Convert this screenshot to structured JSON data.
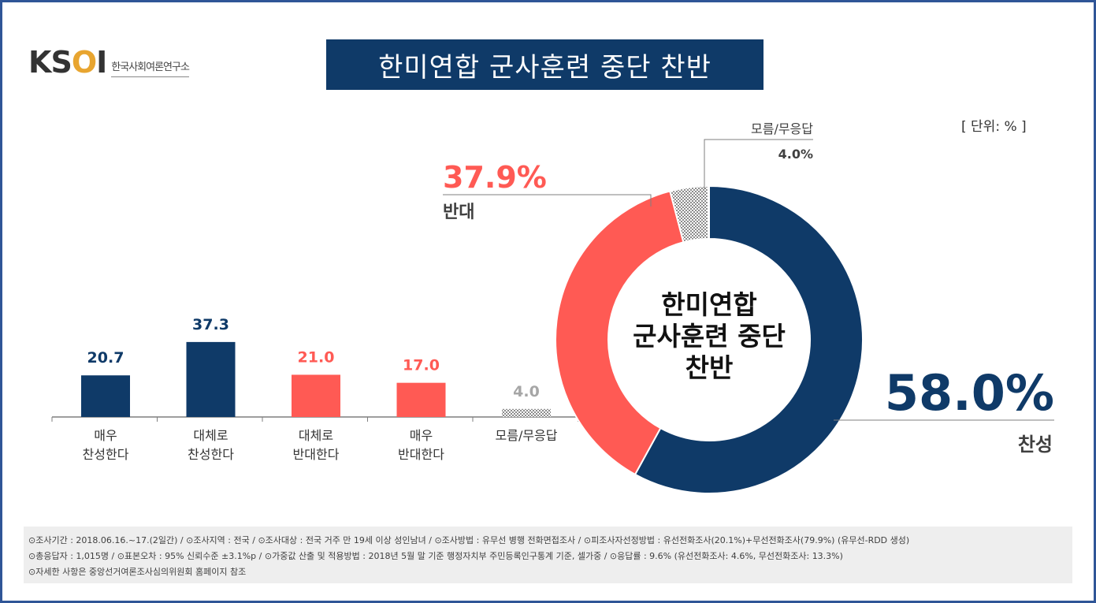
{
  "logo": {
    "mark_pre": "KS",
    "mark_o": "O",
    "mark_post": "I",
    "subtitle": "한국사회여론연구소"
  },
  "title": "한미연합 군사훈련 중단 찬반",
  "unit_label": "[ 단위: % ]",
  "colors": {
    "navy": "#0f3a68",
    "red": "#ff5a54",
    "gray": "#a6a6a6",
    "axis": "#7f7f7f"
  },
  "chart_data": [
    {
      "type": "bar",
      "categories": [
        [
          "매우",
          "찬성한다"
        ],
        [
          "대체로",
          "찬성한다"
        ],
        [
          "대체로",
          "반대한다"
        ],
        [
          "매우",
          "반대한다"
        ],
        [
          "모름/무응답"
        ]
      ],
      "values": [
        20.7,
        37.3,
        21.0,
        17.0,
        4.0
      ],
      "value_labels": [
        "20.7",
        "37.3",
        "21.0",
        "17.0",
        "4.0"
      ],
      "colors": [
        "#0f3a68",
        "#0f3a68",
        "#ff5a54",
        "#ff5a54",
        "pattern"
      ]
    },
    {
      "type": "pie",
      "donut": true,
      "center_text": [
        "한미연합",
        "군사훈련 중단",
        "찬반"
      ],
      "slices": [
        {
          "label": "찬성",
          "value": 58.0,
          "value_label": "58.0%",
          "color": "#0f3a68"
        },
        {
          "label": "반대",
          "value": 37.9,
          "value_label": "37.9%",
          "color": "#ff5a54"
        },
        {
          "label": "모름/무응답",
          "value": 4.0,
          "value_label": "4.0%",
          "color": "pattern"
        }
      ]
    }
  ],
  "footer": {
    "line1": "⊙조사기간 : 2018.06.16.~17.(2일간) / ⊙조사지역 : 전국 / ⊙조사대상 : 전국 거주 만 19세 이상 성인남녀 / ⊙조사방법 : 유무선 병행 전화면접조사 / ⊙피조사자선정방법 : 유선전화조사(20.1%)+무선전화조사(79.9%) (유무선-RDD 생성)",
    "line2": "⊙총응답자 : 1,015명 / ⊙표본오차 : 95% 신뢰수준 ±3.1%p / ⊙가중값 산출 및 적용방법 : 2018년 5월 말 기준 행정자치부 주민등록인구통계 기준, 셀가중 / ⊙응답률 : 9.6% (유선전화조사: 4.6%, 무선전화조사: 13.3%)",
    "line3": "⊙자세한 사항은 중앙선거여론조사심의위원회 홈페이지 참조"
  }
}
